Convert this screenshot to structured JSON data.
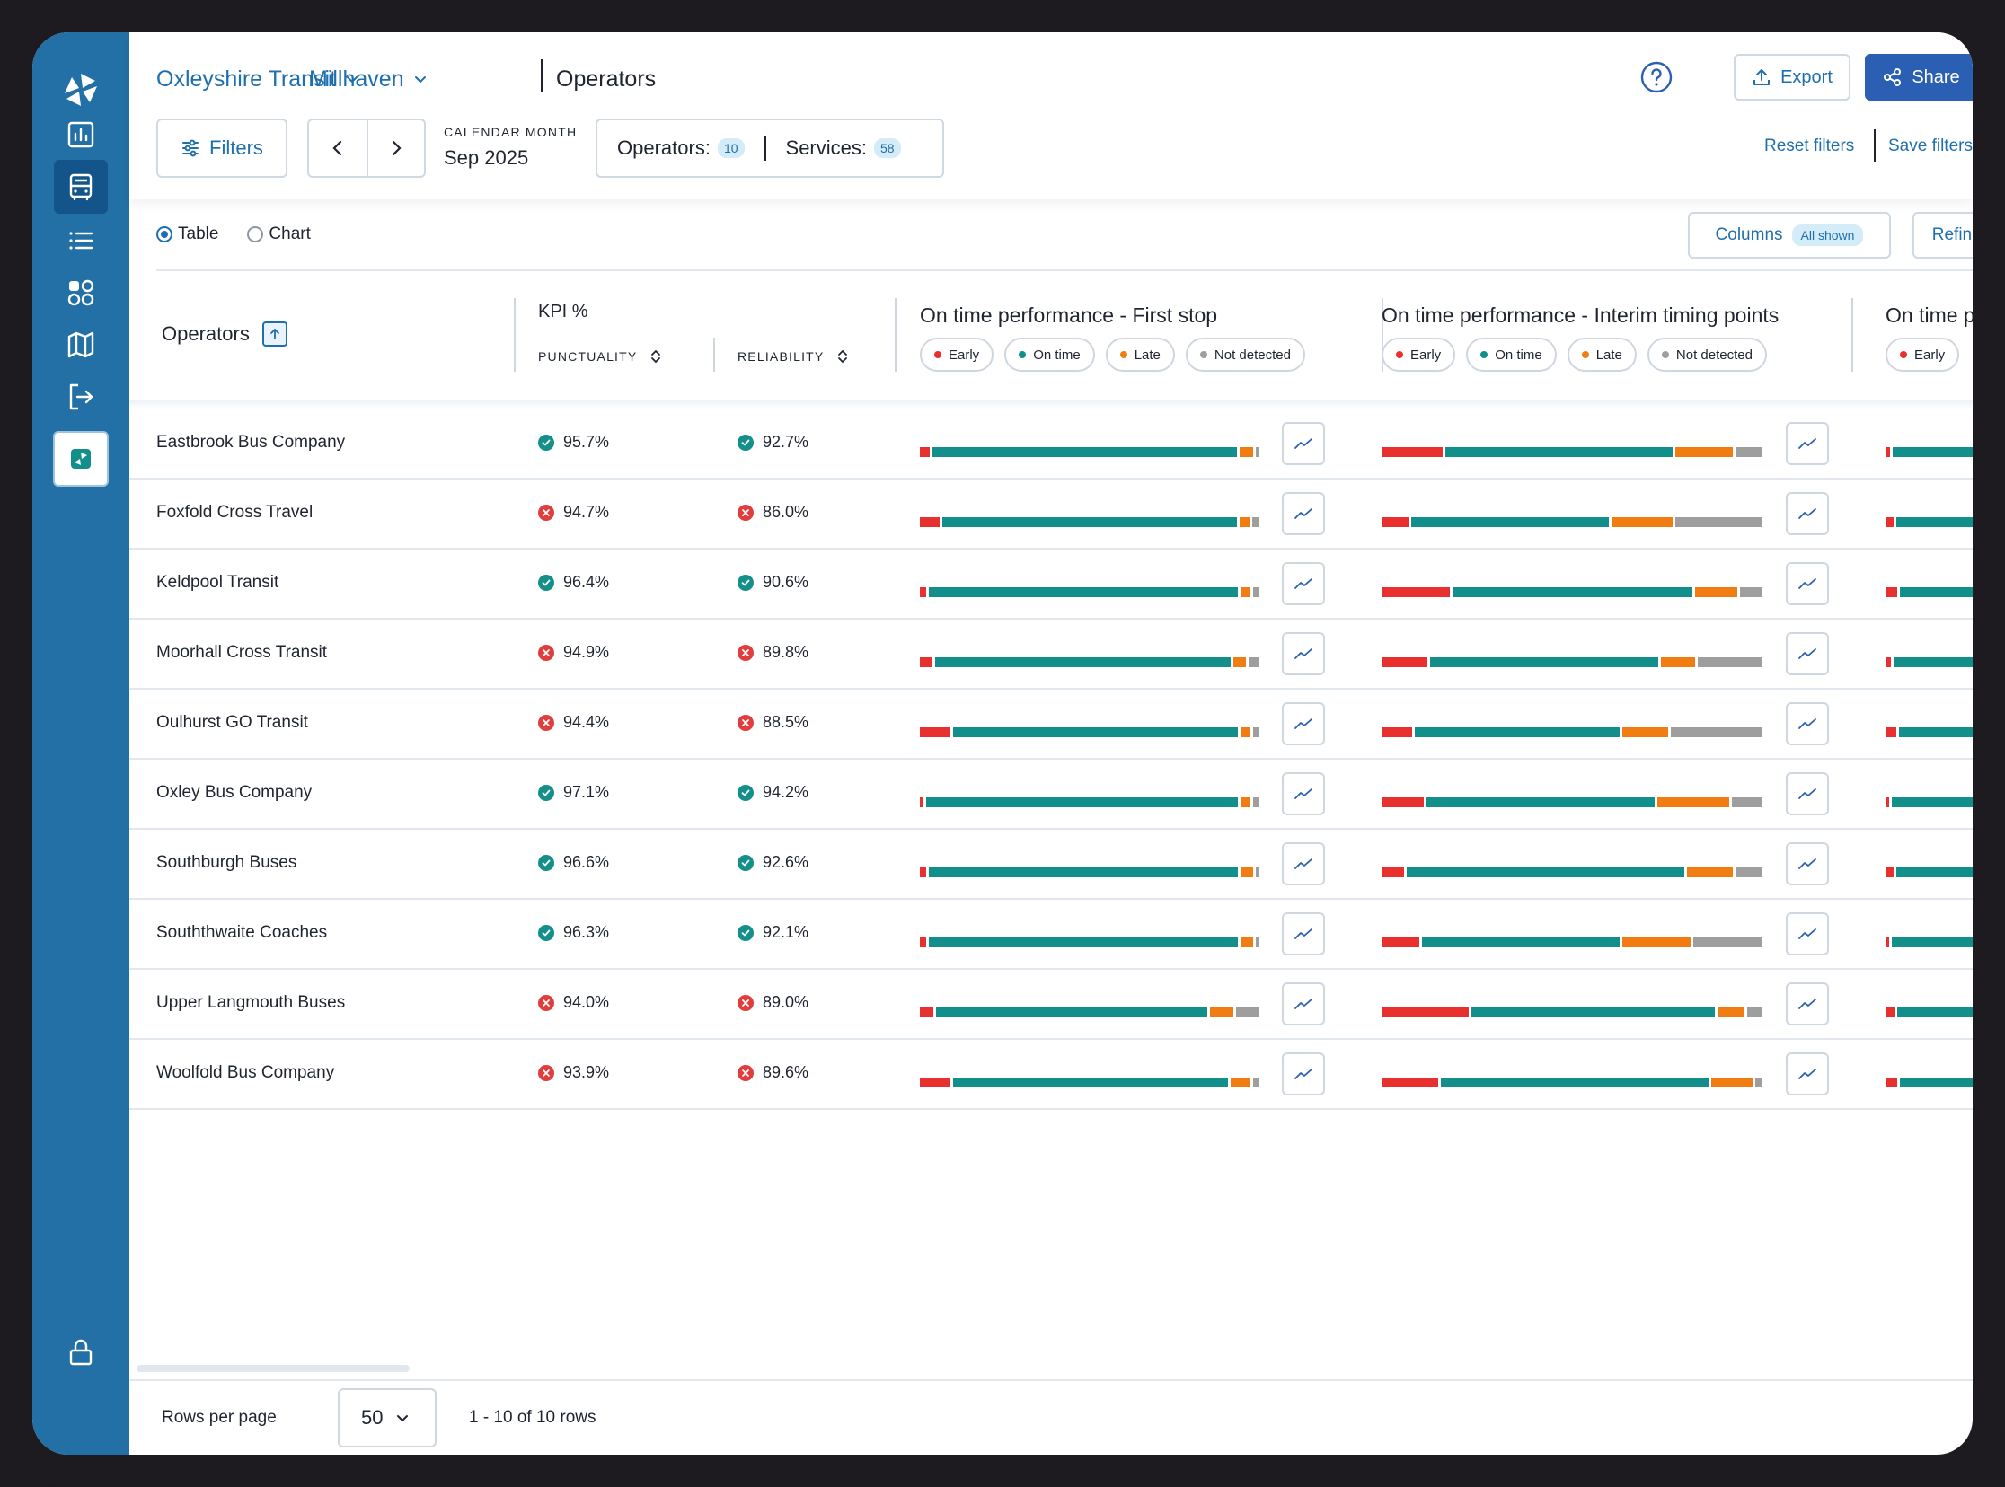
{
  "breadcrumb": {
    "org": "Oxleyshire Transit",
    "area": "Millhaven",
    "page": "Operators"
  },
  "actions": {
    "export_label": "Export",
    "share_label": "Share",
    "filters_label": "Filters",
    "reset_filters": "Reset filters",
    "save_filters": "Save filters"
  },
  "period": {
    "label": "CALENDAR MONTH",
    "value": "Sep 2025"
  },
  "counts": {
    "operators_label": "Operators:",
    "operators_value": "10",
    "services_label": "Services:",
    "services_value": "58"
  },
  "view": {
    "table_label": "Table",
    "chart_label": "Chart",
    "selected": "Table",
    "columns_label": "Columns",
    "columns_badge": "All shown",
    "refine_label": "Refine page"
  },
  "table": {
    "operators_header": "Operators",
    "kpi_header": "KPI %",
    "punctuality_header": "PUNCTUALITY",
    "reliability_header": "RELIABILITY",
    "otp_first_stop": "On time performance - First stop",
    "otp_interim": "On time performance - Interim timing points",
    "otp_third_partial": "On time p",
    "legend": {
      "early": "Early",
      "on_time": "On time",
      "late": "Late",
      "not_detected": "Not detected"
    },
    "colors": {
      "early": "#e8312f",
      "on_time": "#128f8b",
      "late": "#f07c12",
      "not_detected": "#9e9e9e",
      "ok": "#148f8a",
      "bad": "#e23d3d"
    },
    "rows": [
      {
        "name": "Eastbrook Bus Company",
        "punctuality": "95.7%",
        "punctuality_ok": true,
        "reliability": "92.7%",
        "reliability_ok": true,
        "first_stop": [
          3,
          92,
          4,
          1
        ],
        "interim": [
          16,
          60,
          15,
          7
        ],
        "third": [
          5,
          95
        ]
      },
      {
        "name": "Foxfold Cross Travel",
        "punctuality": "94.7%",
        "punctuality_ok": false,
        "reliability": "86.0%",
        "reliability_ok": false,
        "first_stop": [
          6,
          88,
          3,
          2
        ],
        "interim": [
          7,
          52,
          16,
          23
        ],
        "third": [
          9,
          91
        ]
      },
      {
        "name": "Keldpool Transit",
        "punctuality": "96.4%",
        "punctuality_ok": true,
        "reliability": "90.6%",
        "reliability_ok": true,
        "first_stop": [
          2,
          95,
          3,
          2
        ],
        "interim": [
          18,
          63,
          11,
          6
        ],
        "third": [
          13,
          87
        ]
      },
      {
        "name": "Moorhall Cross Transit",
        "punctuality": "94.9%",
        "punctuality_ok": false,
        "reliability": "89.8%",
        "reliability_ok": false,
        "first_stop": [
          4,
          91,
          4,
          3
        ],
        "interim": [
          12,
          60,
          9,
          17
        ],
        "third": [
          6,
          94
        ]
      },
      {
        "name": "Oulhurst GO Transit",
        "punctuality": "94.4%",
        "punctuality_ok": false,
        "reliability": "88.5%",
        "reliability_ok": false,
        "first_stop": [
          9,
          85,
          3,
          2
        ],
        "interim": [
          8,
          54,
          12,
          24
        ],
        "third": [
          12,
          88
        ]
      },
      {
        "name": "Oxley Bus Company",
        "punctuality": "97.1%",
        "punctuality_ok": true,
        "reliability": "94.2%",
        "reliability_ok": true,
        "first_stop": [
          1,
          96,
          3,
          2
        ],
        "interim": [
          11,
          60,
          19,
          8
        ],
        "third": [
          4,
          96
        ]
      },
      {
        "name": "Southburgh Buses",
        "punctuality": "96.6%",
        "punctuality_ok": true,
        "reliability": "92.6%",
        "reliability_ok": true,
        "first_stop": [
          2,
          95,
          4,
          1
        ],
        "interim": [
          6,
          73,
          12,
          7
        ],
        "third": [
          9,
          91
        ]
      },
      {
        "name": "Souththwaite Coaches",
        "punctuality": "96.3%",
        "punctuality_ok": true,
        "reliability": "92.1%",
        "reliability_ok": true,
        "first_stop": [
          2,
          95,
          4,
          1
        ],
        "interim": [
          10,
          52,
          18,
          18
        ],
        "third": [
          3,
          97
        ]
      },
      {
        "name": "Upper Langmouth Buses",
        "punctuality": "94.0%",
        "punctuality_ok": false,
        "reliability": "89.0%",
        "reliability_ok": false,
        "first_stop": [
          4,
          81,
          7,
          7
        ],
        "interim": [
          23,
          64,
          7,
          4
        ],
        "third": [
          10,
          90
        ]
      },
      {
        "name": "Woolfold Bus Company",
        "punctuality": "93.9%",
        "punctuality_ok": false,
        "reliability": "89.6%",
        "reliability_ok": false,
        "first_stop": [
          9,
          82,
          6,
          2
        ],
        "interim": [
          15,
          71,
          11,
          2
        ],
        "third": [
          13,
          87
        ]
      }
    ]
  },
  "footer": {
    "rows_per_page_label": "Rows per page",
    "rows_per_page_value": "50",
    "range_text": "1 - 10 of 10 rows"
  }
}
